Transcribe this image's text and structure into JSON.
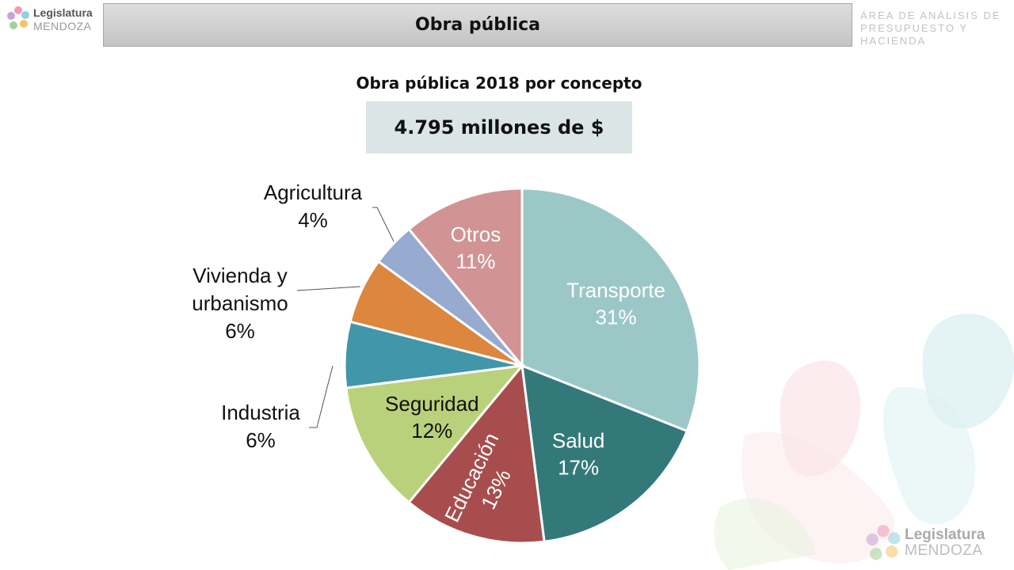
{
  "header": {
    "title": "Obra pública"
  },
  "branding": {
    "logo_line1": "Legislatura",
    "logo_line2": "MENDOZA",
    "dept_line1": "ÁREA DE ANÁLISIS DE",
    "dept_line2": "PRESUPUESTO Y HACIENDA"
  },
  "chart_data": {
    "type": "pie",
    "title": "Obra pública 2018 por concepto",
    "subtitle": "4.795 millones de $",
    "slices": [
      {
        "label": "Transporte",
        "pct_text": "31%",
        "value": 31,
        "color": "#9bc8c6"
      },
      {
        "label": "Salud",
        "pct_text": "17%",
        "value": 17,
        "color": "#34797a"
      },
      {
        "label": "Educación",
        "pct_text": "13%",
        "value": 13,
        "color": "#a84d4d"
      },
      {
        "label": "Seguridad",
        "pct_text": "12%",
        "value": 12,
        "color": "#b9d17a"
      },
      {
        "label": "Industria",
        "pct_text": "6%",
        "value": 6,
        "color": "#4196aa"
      },
      {
        "label": "Vivienda y urbanismo",
        "pct_text": "6%",
        "value": 6,
        "color": "#dc863e"
      },
      {
        "label": "Agricultura",
        "pct_text": "4%",
        "value": 4,
        "color": "#97aad0"
      },
      {
        "label": "Otros",
        "pct_text": "11%",
        "value": 11,
        "color": "#d19393"
      }
    ]
  }
}
